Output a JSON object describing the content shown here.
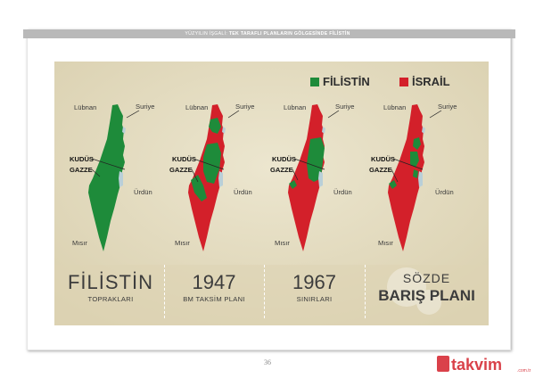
{
  "header": {
    "part1": "YÜZYILIN İŞGALİ:",
    "part2": "TEK TARAFLI PLANLARIN GÖLGESİNDE FİLİSTİN"
  },
  "legend": {
    "palestine": "FİLİSTİN",
    "israel": "İSRAİL",
    "palestine_color": "#1e8b3a",
    "israel_color": "#d3202a"
  },
  "labels": {
    "lebanon": "Lübnan",
    "syria": "Suriye",
    "jerusalem": "KUDÜS",
    "gaza": "GAZZE",
    "jordan": "Ürdün",
    "egypt": "Mısır"
  },
  "panels": [
    {
      "title": "FİLİSTİN",
      "subtitle": "TOPRAKLARI"
    },
    {
      "title": "1947",
      "subtitle": "BM TAKSİM PLANI"
    },
    {
      "title": "1967",
      "subtitle": "SINIRLARI"
    },
    {
      "title_top": "SÖZDE",
      "title": "BARIŞ PLANI"
    }
  ],
  "page_number": "36",
  "watermark": {
    "text": "takvim",
    "domain": ".com.tr"
  }
}
